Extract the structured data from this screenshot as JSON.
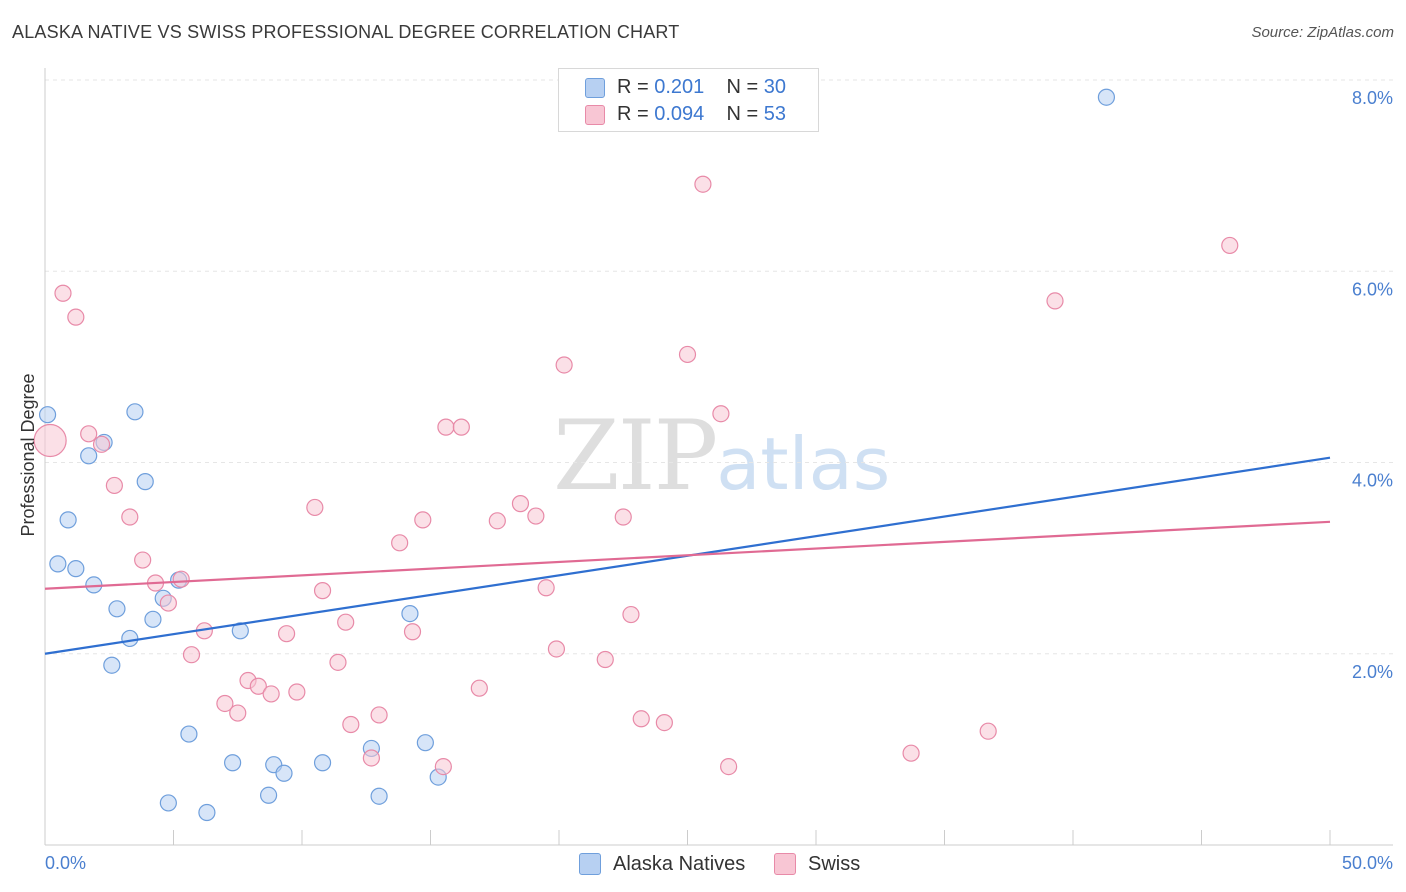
{
  "header": {
    "title": "ALASKA NATIVE VS SWISS PROFESSIONAL DEGREE CORRELATION CHART",
    "source": "Source: ZipAtlas.com"
  },
  "watermark": {
    "zip": "ZIP",
    "atlas": "atlas"
  },
  "legend": {
    "rows": [
      {
        "r_label": "R =",
        "r_value": "0.201",
        "n_label": "N =",
        "n_value": "30"
      },
      {
        "r_label": "R =",
        "r_value": "0.094",
        "n_label": "N =",
        "n_value": "53"
      }
    ]
  },
  "bottom_legend": {
    "items": [
      "Alaska Natives",
      "Swiss"
    ]
  },
  "colors": {
    "blue_fill": "#b7d0f2",
    "blue_stroke": "#6f9fdc",
    "blue_line": "#2f6fd0",
    "pink_fill": "#f8c6d4",
    "pink_stroke": "#e88aa8",
    "pink_line": "#e06a93",
    "tick_text": "#4a7fcf",
    "grid": "#e6e6e6"
  },
  "chart_data": {
    "type": "scatter",
    "title": "ALASKA NATIVE VS SWISS PROFESSIONAL DEGREE CORRELATION CHART",
    "xlabel": "",
    "ylabel": "Professional Degree",
    "xlim": [
      0,
      50
    ],
    "ylim": [
      0,
      8.0
    ],
    "x_tick_labels": [
      "0.0%",
      "50.0%"
    ],
    "y_ticks": [
      2,
      4,
      6,
      8
    ],
    "y_tick_labels": [
      "2.0%",
      "4.0%",
      "6.0%",
      "8.0%"
    ],
    "grid": true,
    "legend_position": "top-center",
    "series": [
      {
        "name": "Alaska Natives",
        "color": "#6f9fdc",
        "trend": {
          "x": [
            0,
            50
          ],
          "y": [
            2.0,
            4.05
          ]
        },
        "points": [
          {
            "x": 0.1,
            "y": 4.5,
            "s": 1
          },
          {
            "x": 3.5,
            "y": 4.53,
            "s": 1
          },
          {
            "x": 2.3,
            "y": 4.21,
            "s": 1
          },
          {
            "x": 1.7,
            "y": 4.07,
            "s": 1
          },
          {
            "x": 3.9,
            "y": 3.8,
            "s": 1
          },
          {
            "x": 0.9,
            "y": 3.4,
            "s": 1
          },
          {
            "x": 0.5,
            "y": 2.94,
            "s": 1
          },
          {
            "x": 1.2,
            "y": 2.89,
            "s": 1
          },
          {
            "x": 1.9,
            "y": 2.72,
            "s": 1
          },
          {
            "x": 5.2,
            "y": 2.77,
            "s": 1
          },
          {
            "x": 4.6,
            "y": 2.58,
            "s": 1
          },
          {
            "x": 2.8,
            "y": 2.47,
            "s": 1
          },
          {
            "x": 4.2,
            "y": 2.36,
            "s": 1
          },
          {
            "x": 7.6,
            "y": 2.24,
            "s": 1
          },
          {
            "x": 3.3,
            "y": 2.16,
            "s": 1
          },
          {
            "x": 2.6,
            "y": 1.88,
            "s": 1
          },
          {
            "x": 14.2,
            "y": 2.42,
            "s": 1
          },
          {
            "x": 5.6,
            "y": 1.16,
            "s": 1
          },
          {
            "x": 14.8,
            "y": 1.07,
            "s": 1
          },
          {
            "x": 12.7,
            "y": 1.01,
            "s": 1
          },
          {
            "x": 7.3,
            "y": 0.86,
            "s": 1
          },
          {
            "x": 8.9,
            "y": 0.84,
            "s": 1
          },
          {
            "x": 10.8,
            "y": 0.86,
            "s": 1
          },
          {
            "x": 9.3,
            "y": 0.75,
            "s": 1
          },
          {
            "x": 15.3,
            "y": 0.71,
            "s": 1
          },
          {
            "x": 8.7,
            "y": 0.52,
            "s": 1
          },
          {
            "x": 13.0,
            "y": 0.51,
            "s": 1
          },
          {
            "x": 4.8,
            "y": 0.44,
            "s": 1
          },
          {
            "x": 6.3,
            "y": 0.34,
            "s": 1
          },
          {
            "x": 41.3,
            "y": 7.82,
            "s": 1
          }
        ]
      },
      {
        "name": "Swiss",
        "color": "#e88aa8",
        "trend": {
          "x": [
            0,
            50
          ],
          "y": [
            2.68,
            3.38
          ]
        },
        "points": [
          {
            "x": 0.2,
            "y": 4.23,
            "s": 2
          },
          {
            "x": 0.7,
            "y": 5.77,
            "s": 1
          },
          {
            "x": 1.2,
            "y": 5.52,
            "s": 1
          },
          {
            "x": 1.7,
            "y": 4.3,
            "s": 1
          },
          {
            "x": 2.2,
            "y": 4.19,
            "s": 1
          },
          {
            "x": 2.7,
            "y": 3.76,
            "s": 1
          },
          {
            "x": 3.3,
            "y": 3.43,
            "s": 1
          },
          {
            "x": 3.8,
            "y": 2.98,
            "s": 1
          },
          {
            "x": 4.3,
            "y": 2.74,
            "s": 1
          },
          {
            "x": 4.8,
            "y": 2.53,
            "s": 1
          },
          {
            "x": 5.3,
            "y": 2.78,
            "s": 1
          },
          {
            "x": 6.2,
            "y": 2.24,
            "s": 1
          },
          {
            "x": 5.7,
            "y": 1.99,
            "s": 1
          },
          {
            "x": 7.0,
            "y": 1.48,
            "s": 1
          },
          {
            "x": 7.5,
            "y": 1.38,
            "s": 1
          },
          {
            "x": 7.9,
            "y": 1.72,
            "s": 1
          },
          {
            "x": 8.3,
            "y": 1.66,
            "s": 1
          },
          {
            "x": 8.8,
            "y": 1.58,
            "s": 1
          },
          {
            "x": 9.4,
            "y": 2.21,
            "s": 1
          },
          {
            "x": 9.8,
            "y": 1.6,
            "s": 1
          },
          {
            "x": 10.5,
            "y": 3.53,
            "s": 1
          },
          {
            "x": 10.8,
            "y": 2.66,
            "s": 1
          },
          {
            "x": 11.4,
            "y": 1.91,
            "s": 1
          },
          {
            "x": 11.7,
            "y": 2.33,
            "s": 1
          },
          {
            "x": 11.9,
            "y": 1.26,
            "s": 1
          },
          {
            "x": 12.7,
            "y": 0.91,
            "s": 1
          },
          {
            "x": 13.0,
            "y": 1.36,
            "s": 1
          },
          {
            "x": 13.8,
            "y": 3.16,
            "s": 1
          },
          {
            "x": 14.3,
            "y": 2.23,
            "s": 1
          },
          {
            "x": 14.7,
            "y": 3.4,
            "s": 1
          },
          {
            "x": 15.5,
            "y": 0.82,
            "s": 1
          },
          {
            "x": 15.6,
            "y": 4.37,
            "s": 1
          },
          {
            "x": 16.2,
            "y": 4.37,
            "s": 1
          },
          {
            "x": 16.9,
            "y": 1.64,
            "s": 1
          },
          {
            "x": 17.6,
            "y": 3.39,
            "s": 1
          },
          {
            "x": 18.5,
            "y": 3.57,
            "s": 1
          },
          {
            "x": 19.1,
            "y": 3.44,
            "s": 1
          },
          {
            "x": 19.5,
            "y": 2.69,
            "s": 1
          },
          {
            "x": 19.9,
            "y": 2.05,
            "s": 1
          },
          {
            "x": 20.2,
            "y": 5.02,
            "s": 1
          },
          {
            "x": 21.8,
            "y": 1.94,
            "s": 1
          },
          {
            "x": 22.5,
            "y": 3.43,
            "s": 1
          },
          {
            "x": 22.8,
            "y": 2.41,
            "s": 1
          },
          {
            "x": 23.2,
            "y": 1.32,
            "s": 1
          },
          {
            "x": 24.1,
            "y": 1.28,
            "s": 1
          },
          {
            "x": 25.0,
            "y": 5.13,
            "s": 1
          },
          {
            "x": 25.6,
            "y": 6.91,
            "s": 1
          },
          {
            "x": 26.3,
            "y": 4.51,
            "s": 1
          },
          {
            "x": 26.6,
            "y": 0.82,
            "s": 1
          },
          {
            "x": 33.7,
            "y": 0.96,
            "s": 1
          },
          {
            "x": 36.7,
            "y": 1.19,
            "s": 1
          },
          {
            "x": 39.3,
            "y": 5.69,
            "s": 1
          },
          {
            "x": 46.1,
            "y": 6.27,
            "s": 1
          }
        ]
      }
    ]
  }
}
